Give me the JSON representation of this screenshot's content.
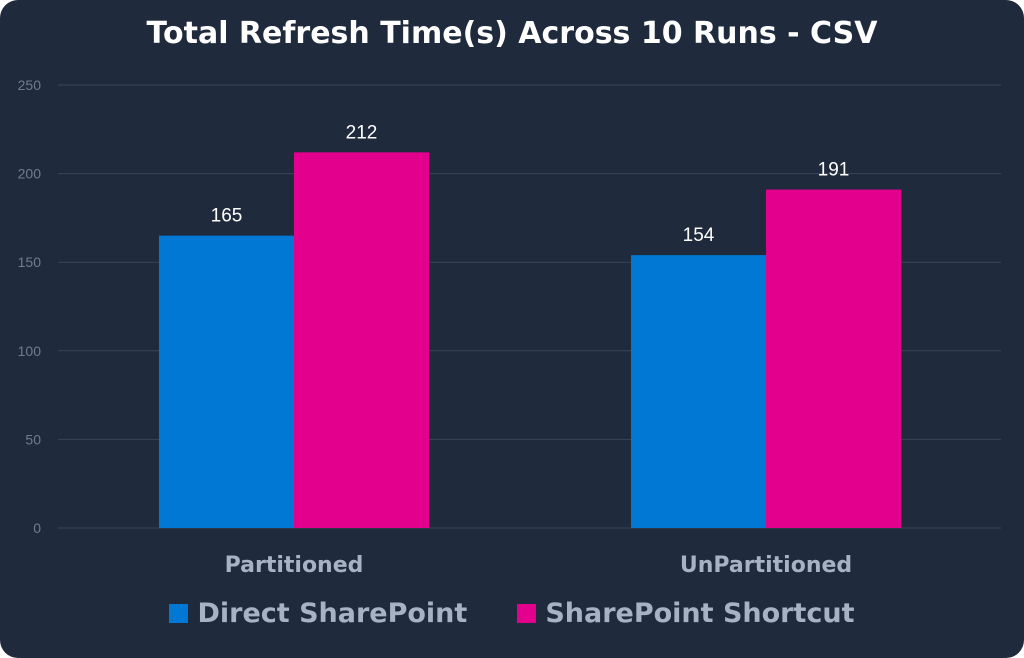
{
  "chart_data": {
    "type": "bar",
    "title": "Total Refresh Time(s) Across 10 Runs - CSV",
    "categories": [
      "Partitioned",
      "UnPartitioned"
    ],
    "series": [
      {
        "name": "Direct SharePoint",
        "values": [
          165,
          154
        ],
        "color": "#0078d4"
      },
      {
        "name": "SharePoint Shortcut",
        "values": [
          212,
          191
        ],
        "color": "#e3008c"
      }
    ],
    "xlabel": "",
    "ylabel": "",
    "ylim": [
      0,
      250
    ],
    "yticks": [
      "0",
      "50",
      "100",
      "150",
      "200",
      "250"
    ],
    "grid": true,
    "legend_position": "bottom",
    "data_labels": true,
    "colors": {
      "background": "#1f2a3c",
      "gridline": "#3a4558",
      "tick_label": "#6f7c8f",
      "category_label": "#a7b3c4",
      "data_label": "#ffffff",
      "title": "#ffffff"
    }
  }
}
